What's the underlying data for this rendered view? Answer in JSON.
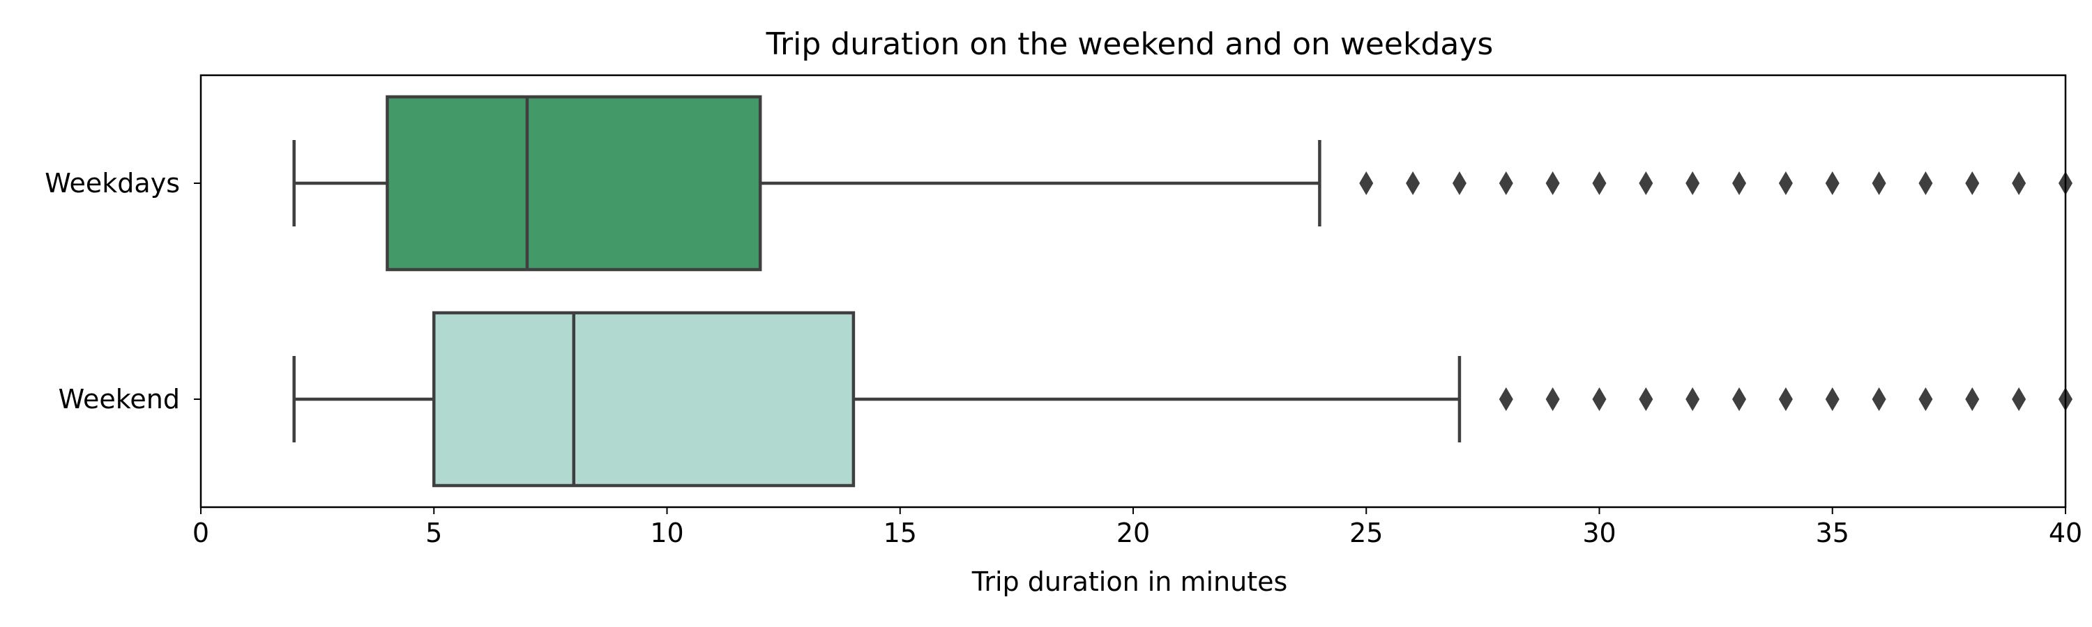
{
  "chart_data": {
    "type": "box",
    "orientation": "horizontal",
    "title": "Trip duration on the weekend and on weekdays",
    "xlabel": "Trip duration in minutes",
    "ylabel": "",
    "xlim": [
      0,
      40
    ],
    "xticks": [
      0,
      5,
      10,
      15,
      20,
      25,
      30,
      35,
      40
    ],
    "grid": false,
    "categories": [
      "Weekdays",
      "Weekend"
    ],
    "series": [
      {
        "category": "Weekdays",
        "color": "#439a68",
        "whisker_low": 2,
        "q1": 4,
        "median": 7,
        "q3": 12,
        "whisker_high": 24,
        "outliers": [
          25,
          26,
          27,
          28,
          29,
          30,
          31,
          32,
          33,
          34,
          35,
          36,
          37,
          38,
          39,
          40
        ]
      },
      {
        "category": "Weekend",
        "color": "#b1d9d0",
        "whisker_low": 2,
        "q1": 5,
        "median": 8,
        "q3": 14,
        "whisker_high": 27,
        "outliers": [
          28,
          29,
          30,
          31,
          32,
          33,
          34,
          35,
          36,
          37,
          38,
          39,
          40
        ]
      }
    ]
  },
  "colors": {
    "line": "#3f3f3f",
    "axis": "#000000"
  }
}
